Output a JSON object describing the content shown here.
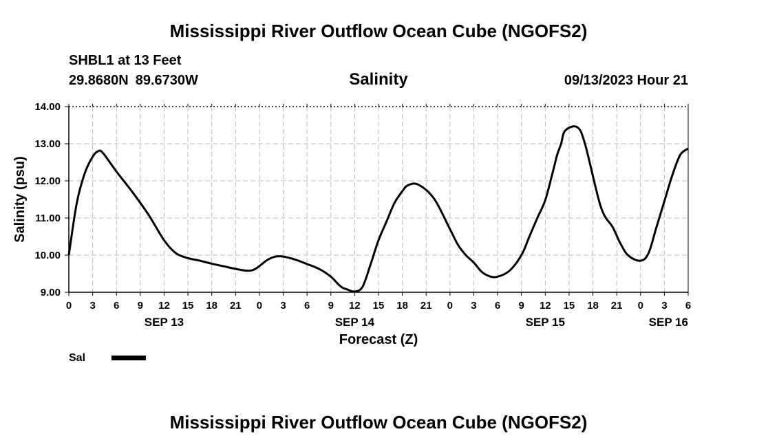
{
  "header": {
    "title": "Mississippi River Outflow Ocean Cube (NGOFS2)",
    "station": "SHBL1 at 13 Feet",
    "latitude": "29.8680N",
    "longitude": "89.6730W",
    "chart_title": "Salinity",
    "datetime": "09/13/2023 Hour 21"
  },
  "footer": {
    "title": "Mississippi River Outflow Ocean Cube (NGOFS2)"
  },
  "colors": {
    "line": "#000000",
    "grid": "#bbbbbb",
    "background": "#ffffff"
  },
  "chart_data": {
    "type": "line",
    "title": "Salinity",
    "xlabel": "Forecast (Z)",
    "ylabel": "Salinity (psu)",
    "xlim": [
      0,
      78
    ],
    "ylim": [
      9.0,
      14.0
    ],
    "x_ticks": [
      0,
      3,
      6,
      9,
      12,
      15,
      18,
      21,
      24,
      27,
      30,
      33,
      36,
      39,
      42,
      45,
      48,
      51,
      54,
      57,
      60,
      63,
      66,
      69,
      72,
      75,
      78
    ],
    "x_tick_labels": [
      "0",
      "3",
      "6",
      "9",
      "12",
      "15",
      "18",
      "21",
      "0",
      "3",
      "6",
      "9",
      "12",
      "15",
      "18",
      "21",
      "0",
      "3",
      "6",
      "9",
      "12",
      "15",
      "18",
      "21",
      "0",
      "3",
      "6"
    ],
    "y_ticks": [
      9.0,
      10.0,
      11.0,
      12.0,
      13.0,
      14.0
    ],
    "y_tick_labels": [
      "9.00",
      "10.00",
      "11.00",
      "12.00",
      "13.00",
      "14.00"
    ],
    "day_labels": [
      {
        "x": 12,
        "label": "SEP 13"
      },
      {
        "x": 36,
        "label": "SEP 14"
      },
      {
        "x": 60,
        "label": "SEP 15"
      },
      {
        "x": 78,
        "label": "SEP 16"
      }
    ],
    "grid": true,
    "legend": [
      {
        "label": "Sal",
        "position": "bottom-left"
      }
    ],
    "series": [
      {
        "name": "Sal",
        "x": [
          0,
          1,
          2,
          3,
          3.7,
          4.3,
          6,
          8,
          10,
          12,
          13.5,
          15,
          16.5,
          18,
          19.5,
          21,
          22.5,
          23.5,
          25,
          26,
          27,
          28.5,
          30,
          31.5,
          33,
          34,
          34.5,
          35,
          36,
          37,
          38,
          39,
          40,
          41,
          42,
          42.7,
          44,
          46,
          48,
          49,
          50,
          51,
          52,
          53,
          54,
          55.5,
          57,
          58,
          59,
          60,
          61,
          61.5,
          62,
          62.5,
          64,
          65,
          67,
          68.5,
          69.5,
          70.5,
          72,
          73,
          74,
          75,
          76,
          77,
          78
        ],
        "values": [
          10.0,
          11.4,
          12.2,
          12.65,
          12.8,
          12.75,
          12.25,
          11.7,
          11.1,
          10.4,
          10.05,
          9.92,
          9.85,
          9.77,
          9.7,
          9.63,
          9.58,
          9.63,
          9.87,
          9.96,
          9.96,
          9.88,
          9.76,
          9.63,
          9.42,
          9.2,
          9.12,
          9.08,
          9.02,
          9.15,
          9.75,
          10.4,
          10.9,
          11.4,
          11.72,
          11.88,
          11.9,
          11.52,
          10.7,
          10.28,
          10.0,
          9.8,
          9.55,
          9.43,
          9.42,
          9.58,
          10.0,
          10.5,
          11.0,
          11.48,
          12.28,
          12.7,
          13.0,
          13.35,
          13.45,
          13.0,
          11.3,
          10.75,
          10.3,
          9.98,
          9.85,
          10.05,
          10.75,
          11.45,
          12.15,
          12.7,
          12.87
        ]
      }
    ]
  }
}
